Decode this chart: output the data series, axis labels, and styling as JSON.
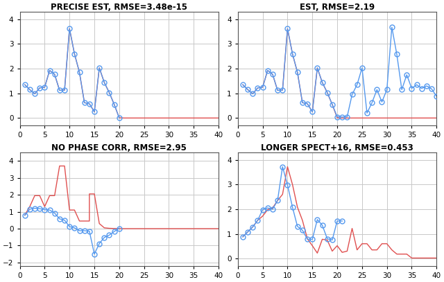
{
  "titles": [
    "PRECISE EST, RMSE=3.48e-15",
    "EST, RMSE=2.19",
    "NO PHASE CORR, RMSE=2.95",
    "LONGER SPECT+16, RMSE=0.453"
  ],
  "xlim": [
    0,
    40
  ],
  "xticks": [
    0,
    5,
    10,
    15,
    20,
    25,
    30,
    35,
    40
  ],
  "red_color": "#e05050",
  "blue_color": "#5599ee",
  "figsize": [
    6.4,
    4.07
  ],
  "dpi": 100,
  "background": "#ffffff",
  "grid_color": "#c8c8c8",
  "title_fontsize": 8.5,
  "sig_x": [
    1,
    2,
    3,
    4,
    5,
    6,
    7,
    8,
    9,
    10,
    11,
    12,
    13,
    14,
    15,
    16,
    17,
    18,
    19,
    20
  ],
  "sig_y": [
    1.35,
    1.15,
    0.98,
    1.22,
    1.25,
    1.93,
    1.77,
    1.12,
    1.13,
    3.62,
    2.6,
    1.85,
    0.62,
    0.58,
    0.25,
    2.03,
    1.44,
    1.03,
    0.55,
    0.01
  ],
  "panel1_ylim": [
    -0.3,
    4.3
  ],
  "panel1_yticks": [
    0,
    1,
    2,
    3,
    4
  ],
  "panel2_ylim": [
    -0.3,
    4.3
  ],
  "panel2_yticks": [
    0,
    1,
    2,
    3,
    4
  ],
  "panel2_blue_x": [
    1,
    2,
    3,
    4,
    5,
    6,
    7,
    8,
    9,
    10,
    11,
    12,
    13,
    14,
    15,
    16,
    17,
    18,
    19,
    20,
    21,
    22,
    23,
    24,
    25,
    26,
    27,
    28,
    29,
    30,
    31,
    32,
    33,
    34,
    35,
    36,
    37,
    38,
    39,
    40
  ],
  "panel2_blue_y": [
    1.35,
    1.15,
    0.98,
    1.22,
    1.25,
    1.93,
    1.77,
    1.12,
    1.13,
    3.62,
    2.6,
    1.85,
    0.62,
    0.58,
    0.25,
    2.03,
    1.44,
    1.03,
    0.55,
    0.05,
    0.04,
    0.05,
    0.95,
    1.35,
    2.03,
    0.2,
    0.62,
    1.15,
    0.65,
    1.15,
    3.68,
    2.58,
    1.15,
    1.75,
    1.2,
    1.35,
    1.2,
    1.3,
    1.18,
    0.88
  ],
  "panel3_ylim": [
    -2.2,
    4.5
  ],
  "panel3_yticks": [
    -2,
    -1,
    0,
    1,
    2,
    3,
    4
  ],
  "panel3_red_x": [
    1,
    2,
    3,
    4,
    5,
    6,
    7,
    8,
    9,
    10,
    11,
    12,
    13,
    14,
    14,
    15,
    16,
    17,
    18,
    19,
    20,
    21,
    22,
    23,
    24,
    25,
    26,
    27,
    28,
    29,
    30,
    31,
    32,
    33,
    34,
    35,
    36,
    37,
    38,
    39,
    40
  ],
  "panel3_red_y": [
    0.8,
    1.3,
    1.95,
    1.95,
    1.3,
    1.95,
    1.95,
    3.7,
    3.7,
    1.1,
    1.1,
    0.45,
    0.45,
    0.45,
    2.05,
    2.05,
    0.3,
    0.05,
    0.02,
    0.01,
    0.0,
    0.0,
    0.0,
    0.0,
    0.0,
    0.0,
    0.0,
    0.0,
    0.0,
    0.0,
    0.0,
    0.0,
    0.0,
    0.0,
    0.0,
    0.0,
    0.0,
    0.0,
    0.0,
    0.0,
    0.0
  ],
  "panel3_blue_x": [
    1,
    2,
    3,
    4,
    5,
    6,
    7,
    8,
    9,
    10,
    11,
    12,
    13,
    14,
    15,
    16,
    17,
    18,
    19,
    20
  ],
  "panel3_blue_y": [
    0.78,
    1.15,
    1.2,
    1.18,
    1.12,
    1.1,
    0.92,
    0.58,
    0.5,
    0.12,
    0.05,
    -0.12,
    -0.12,
    -0.15,
    -1.5,
    -0.88,
    -0.52,
    -0.38,
    -0.17,
    0.02
  ],
  "panel4_ylim": [
    -0.3,
    4.3
  ],
  "panel4_yticks": [
    0,
    1,
    2,
    3,
    4
  ],
  "panel4_red_x": [
    1,
    2,
    3,
    4,
    5,
    6,
    7,
    8,
    9,
    10,
    11,
    12,
    13,
    14,
    15,
    16,
    17,
    18,
    19,
    20,
    21,
    22,
    23,
    24,
    25,
    26,
    27,
    28,
    29,
    30,
    31,
    32,
    33,
    34,
    35,
    36,
    37,
    38,
    39,
    40
  ],
  "panel4_red_y": [
    0.88,
    1.08,
    1.28,
    1.55,
    1.72,
    1.98,
    2.05,
    2.35,
    2.6,
    3.72,
    3.0,
    2.08,
    1.55,
    0.8,
    0.52,
    0.22,
    0.78,
    0.75,
    0.3,
    0.52,
    0.25,
    0.3,
    1.22,
    0.35,
    0.6,
    0.6,
    0.35,
    0.35,
    0.6,
    0.6,
    0.35,
    0.18,
    0.18,
    0.18,
    0.02,
    0.02,
    0.02,
    0.02,
    0.02,
    0.02
  ],
  "panel4_blue_x": [
    1,
    2,
    3,
    4,
    5,
    6,
    7,
    8,
    9,
    10,
    11,
    12,
    13,
    14,
    15,
    16,
    17,
    18,
    19,
    20,
    21
  ],
  "panel4_blue_y": [
    0.88,
    1.08,
    1.28,
    1.55,
    1.98,
    2.05,
    2.0,
    2.35,
    3.72,
    2.98,
    2.08,
    1.3,
    1.15,
    0.78,
    0.78,
    1.58,
    1.35,
    0.8,
    0.75,
    1.52,
    1.52
  ]
}
